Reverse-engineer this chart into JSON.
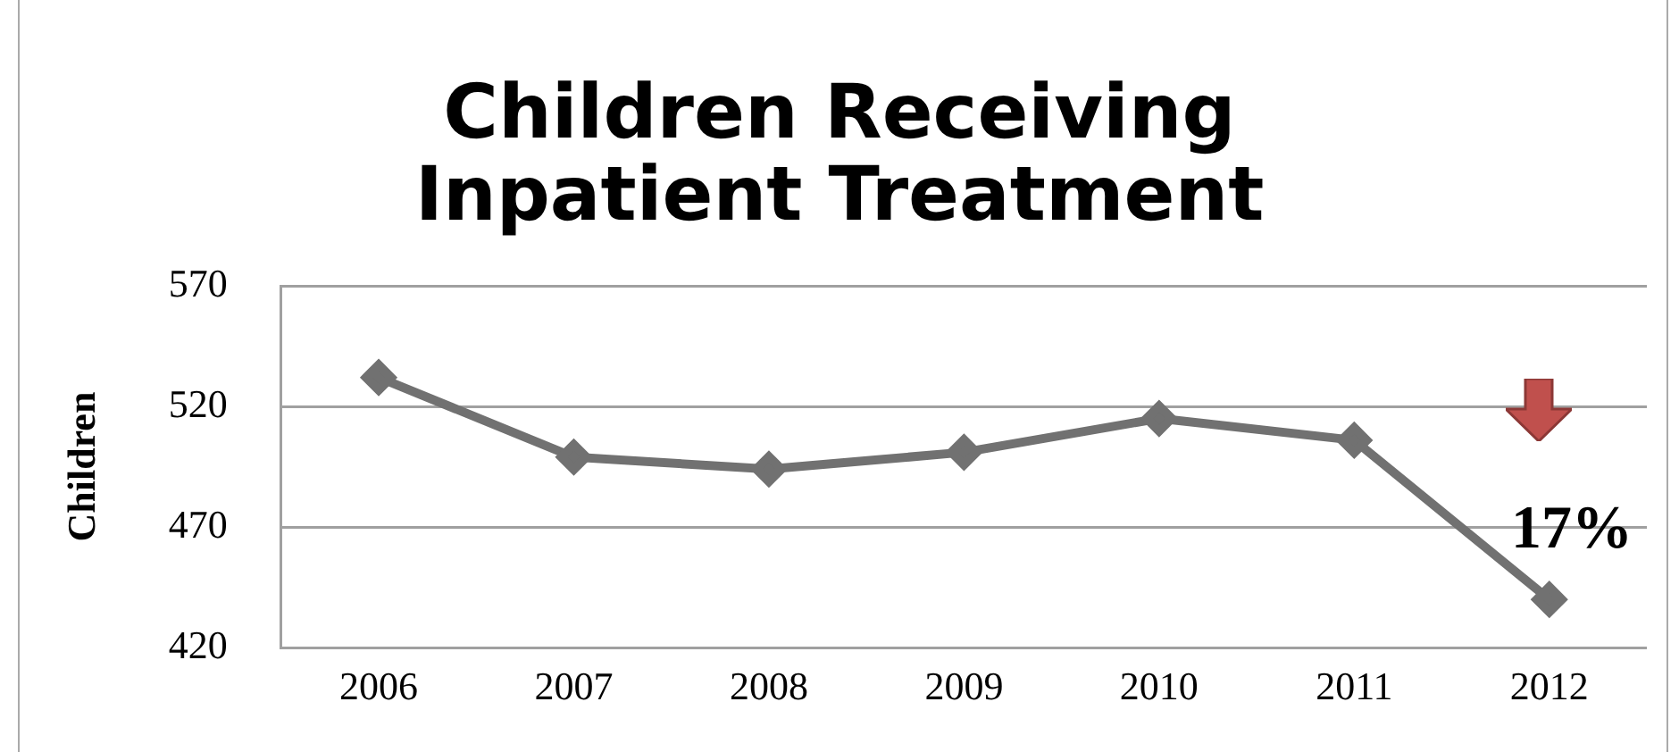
{
  "chart_data": {
    "type": "line",
    "title": "Children Receiving Inpatient Treatment",
    "ylabel": "Children",
    "categories": [
      "2006",
      "2007",
      "2008",
      "2009",
      "2010",
      "2011",
      "2012"
    ],
    "series": [
      {
        "color": "#717171",
        "values": [
          532,
          499,
          494,
          501,
          515,
          506,
          440
        ]
      }
    ],
    "ylim": [
      420,
      570
    ],
    "yticks": [
      420,
      470,
      520,
      570
    ],
    "grid": "y",
    "legend": false,
    "marker": "diamond",
    "line_style": "solid",
    "annotations": [
      "17%"
    ]
  }
}
